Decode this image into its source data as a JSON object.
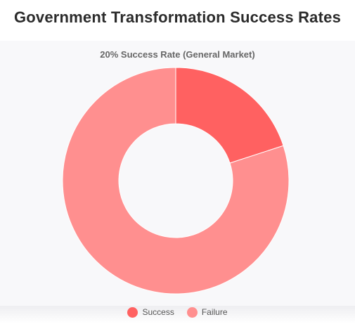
{
  "page": {
    "title": "Government Transformation Success Rates"
  },
  "chart_data": {
    "type": "pie",
    "subtype": "doughnut",
    "title": "20% Success Rate (General Market)",
    "categories": [
      "Success",
      "Failure"
    ],
    "values": [
      20,
      80
    ],
    "colors": [
      "#ff6161",
      "#ff8f8f"
    ],
    "legend_position": "bottom"
  }
}
